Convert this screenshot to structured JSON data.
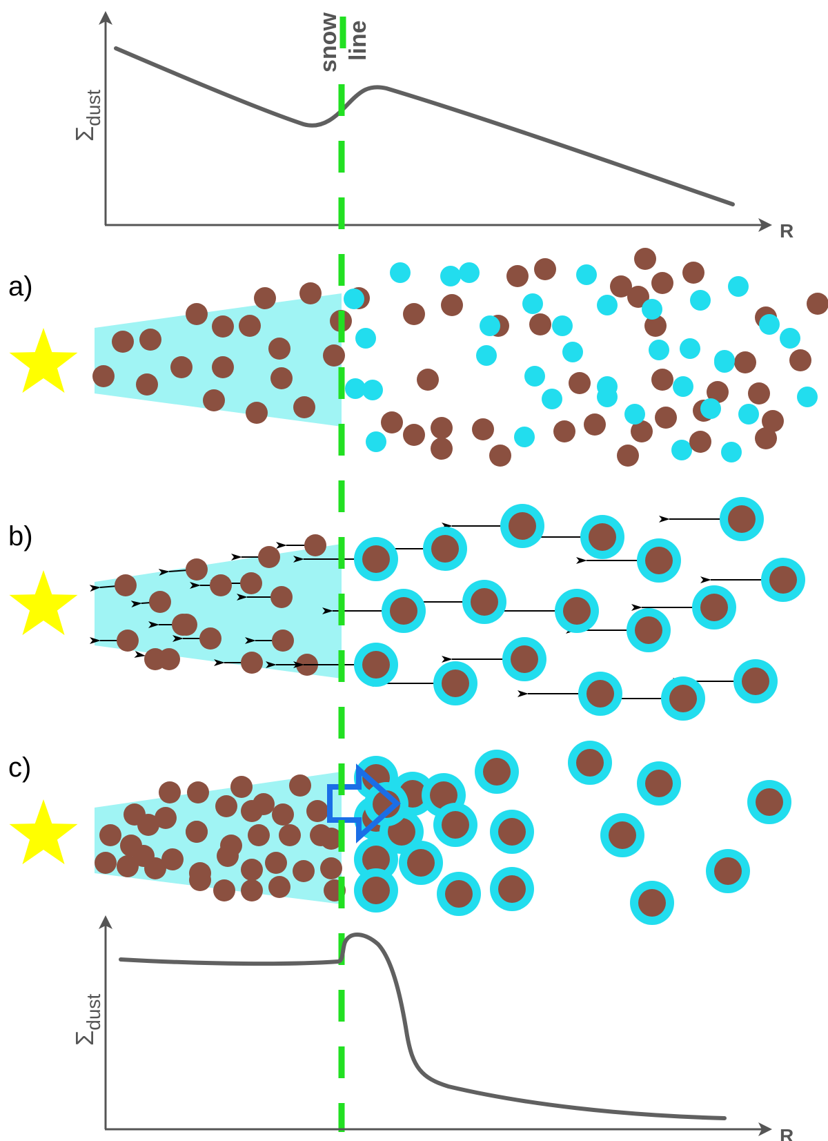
{
  "colors": {
    "axis": "#555555",
    "curve": "#606060",
    "snowline": "#22e022",
    "star": "#ffff00",
    "disk_inner": "#a0f4f4",
    "grain_rock": "#8b5040",
    "grain_ice": "#22ddee",
    "arrow": "#000000",
    "push_arrow": "#1a6ee6"
  },
  "icons": {
    "star": "star-icon",
    "push": "right-arrow-icon"
  },
  "snow_line": {
    "line1": "snow",
    "line2": "line"
  },
  "top_plot": {
    "ylabel_symbol": "Σ",
    "ylabel_sub": "dust",
    "xlabel": "R"
  },
  "bottom_plot": {
    "ylabel_symbol": "Σ",
    "ylabel_sub": "dust",
    "xlabel": "R"
  },
  "panels": [
    {
      "label": "a)",
      "description": "rocky grains inside, icy grains beyond"
    },
    {
      "label": "b)",
      "description": "icy grains drift inward"
    },
    {
      "label": "c)",
      "description": "grains pile up outside"
    }
  ]
}
